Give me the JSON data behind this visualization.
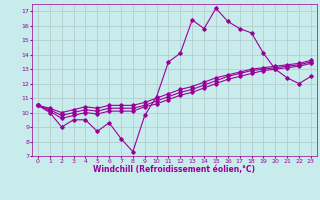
{
  "xlabel": "Windchill (Refroidissement éolien,°C)",
  "ylabel": "",
  "background_color": "#c8ecec",
  "grid_color": "#b0c8c8",
  "line_color": "#990099",
  "xlim": [
    -0.5,
    23.5
  ],
  "ylim": [
    7,
    17.5
  ],
  "xticks": [
    0,
    1,
    2,
    3,
    4,
    5,
    6,
    7,
    8,
    9,
    10,
    11,
    12,
    13,
    14,
    15,
    16,
    17,
    18,
    19,
    20,
    21,
    22,
    23
  ],
  "yticks": [
    7,
    8,
    9,
    10,
    11,
    12,
    13,
    14,
    15,
    16,
    17
  ],
  "series": [
    [
      10.5,
      10.0,
      9.0,
      9.5,
      9.5,
      8.7,
      9.3,
      8.2,
      7.3,
      9.8,
      11.1,
      13.5,
      14.1,
      16.4,
      15.8,
      17.2,
      16.3,
      15.8,
      15.5,
      14.1,
      13.0,
      12.4,
      12.0,
      12.5
    ],
    [
      10.5,
      10.1,
      9.6,
      9.8,
      10.0,
      9.9,
      10.1,
      10.1,
      10.1,
      10.4,
      10.6,
      10.9,
      11.2,
      11.4,
      11.7,
      12.0,
      12.3,
      12.5,
      12.7,
      12.9,
      13.0,
      13.1,
      13.2,
      13.4
    ],
    [
      10.5,
      10.2,
      9.8,
      10.0,
      10.2,
      10.1,
      10.3,
      10.3,
      10.3,
      10.5,
      10.8,
      11.1,
      11.4,
      11.6,
      11.9,
      12.2,
      12.5,
      12.7,
      12.9,
      13.0,
      13.1,
      13.2,
      13.3,
      13.5
    ],
    [
      10.5,
      10.3,
      10.0,
      10.2,
      10.4,
      10.3,
      10.5,
      10.5,
      10.5,
      10.7,
      11.0,
      11.3,
      11.6,
      11.8,
      12.1,
      12.4,
      12.6,
      12.8,
      13.0,
      13.1,
      13.2,
      13.3,
      13.4,
      13.6
    ]
  ],
  "marker": "D",
  "markersize": 1.8,
  "linewidth": 0.8,
  "tick_fontsize": 4.5,
  "label_fontsize": 5.5,
  "title_fontsize": 5.5
}
